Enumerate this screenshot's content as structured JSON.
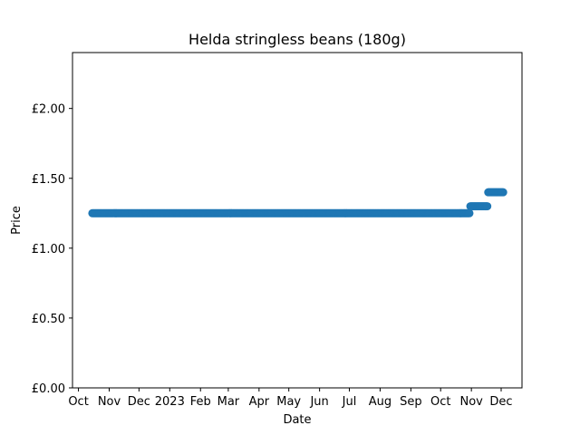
{
  "chart_data": {
    "type": "scatter",
    "title": "Helda stringless beans (180g)",
    "xlabel": "Date",
    "ylabel": "Price",
    "xlim": [
      "2022-09-25",
      "2023-12-22"
    ],
    "ylim": [
      0,
      2.4
    ],
    "grid": false,
    "legend": "none",
    "x_ticks": [
      {
        "date": "2022-10-01",
        "label": "Oct"
      },
      {
        "date": "2022-11-01",
        "label": "Nov"
      },
      {
        "date": "2022-12-01",
        "label": "Dec"
      },
      {
        "date": "2023-01-01",
        "label": "2023"
      },
      {
        "date": "2023-02-01",
        "label": "Feb"
      },
      {
        "date": "2023-03-01",
        "label": "Mar"
      },
      {
        "date": "2023-04-01",
        "label": "Apr"
      },
      {
        "date": "2023-05-01",
        "label": "May"
      },
      {
        "date": "2023-06-01",
        "label": "Jun"
      },
      {
        "date": "2023-07-01",
        "label": "Jul"
      },
      {
        "date": "2023-08-01",
        "label": "Aug"
      },
      {
        "date": "2023-09-01",
        "label": "Sep"
      },
      {
        "date": "2023-10-01",
        "label": "Oct"
      },
      {
        "date": "2023-11-01",
        "label": "Nov"
      },
      {
        "date": "2023-12-01",
        "label": "Dec"
      }
    ],
    "y_ticks": [
      {
        "value": 0,
        "label": "£0.00"
      },
      {
        "value": 0.5,
        "label": "£0.50"
      },
      {
        "value": 1.0,
        "label": "£1.00"
      },
      {
        "value": 1.5,
        "label": "£1.50"
      },
      {
        "value": 2.0,
        "label": "£2.00"
      }
    ],
    "marker_color": "#1f77b4",
    "series": [
      {
        "segments": [
          {
            "start": "2022-10-15",
            "end": "2023-10-30",
            "value": 1.25
          },
          {
            "start": "2023-10-31",
            "end": "2023-11-17",
            "value": 1.3
          },
          {
            "start": "2023-11-18",
            "end": "2023-12-03",
            "value": 1.4
          }
        ]
      }
    ]
  }
}
